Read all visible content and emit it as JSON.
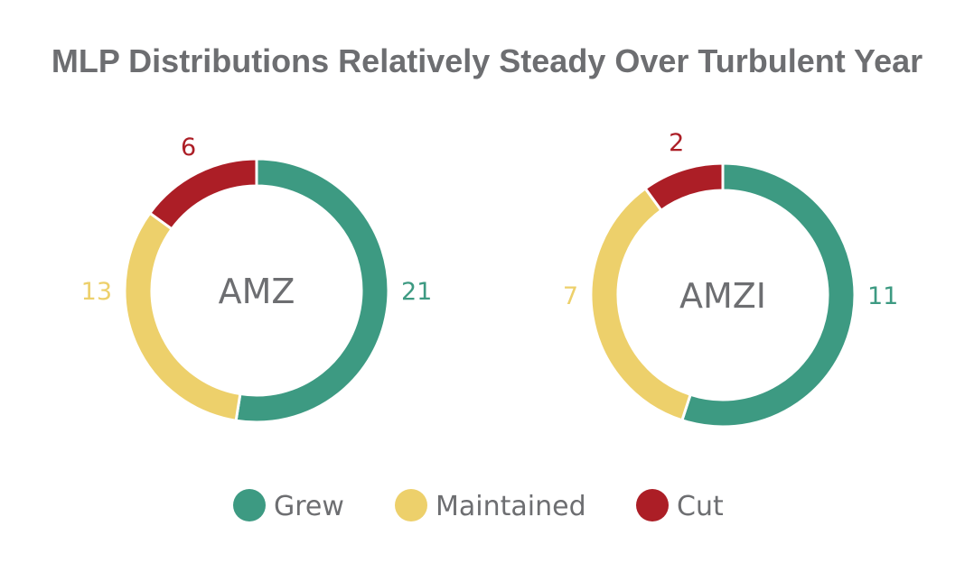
{
  "chart_data": {
    "type": "pie",
    "title": "MLP Distributions Relatively Steady Over Turbulent Year",
    "categories": [
      "Grew",
      "Maintained",
      "Cut"
    ],
    "colors": {
      "Grew": "#3d9a82",
      "Maintained": "#edd06b",
      "Cut": "#ac1e26"
    },
    "legend_position": "bottom",
    "charts": [
      {
        "name": "AMZ",
        "values": [
          21,
          13,
          6
        ]
      },
      {
        "name": "AMZI",
        "values": [
          11,
          7,
          2
        ]
      }
    ]
  }
}
